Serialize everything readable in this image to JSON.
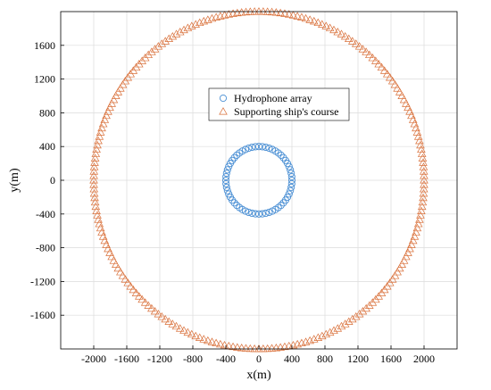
{
  "chart_data": {
    "type": "scatter",
    "title": "",
    "xlabel": "x(m)",
    "ylabel": "y(m)",
    "xlim": [
      -2400,
      2400
    ],
    "ylim": [
      -2000,
      2000
    ],
    "xticks": [
      -2000,
      -1600,
      -1200,
      -800,
      -400,
      0,
      400,
      800,
      1200,
      1600,
      2000
    ],
    "yticks": [
      -1600,
      -1200,
      -800,
      -400,
      0,
      400,
      800,
      1200,
      1600
    ],
    "grid": true,
    "legend_placement": "upper-center",
    "series": [
      {
        "name": "Hydrophone array",
        "marker": "circle",
        "color": "#4a8fd4",
        "shape": "ring",
        "center": [
          0,
          0
        ],
        "radius": 400,
        "count": 60
      },
      {
        "name": "Supporting ship's course",
        "marker": "triangle",
        "color": "#d9703a",
        "shape": "ring",
        "center": [
          0,
          0
        ],
        "radius": 2000,
        "count": 240
      }
    ]
  }
}
